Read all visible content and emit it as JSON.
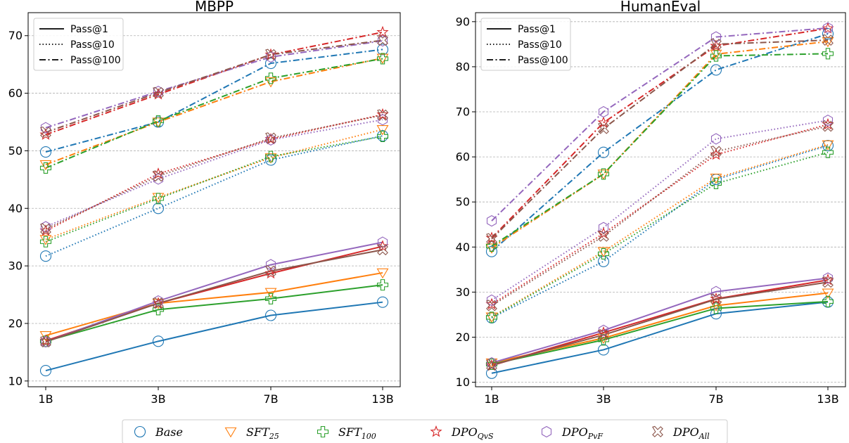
{
  "colors": {
    "Base": "#1f77b4",
    "SFT25": "#ff7f0e",
    "SFT100": "#2ca02c",
    "DPO_QvS": "#d62728",
    "DPO_PvF": "#9467bd",
    "DPO_All": "#8c564b"
  },
  "legend": {
    "line_styles": [
      {
        "label": "Pass@1",
        "style": "solid"
      },
      {
        "label": "Pass@10",
        "style": "dotted"
      },
      {
        "label": "Pass@100",
        "style": "dashdot"
      }
    ],
    "methods": [
      {
        "key": "Base",
        "label": "Base",
        "sub": "",
        "marker": "circle"
      },
      {
        "key": "SFT25",
        "label": "SFT",
        "sub": "25",
        "marker": "triangle_down"
      },
      {
        "key": "SFT100",
        "label": "SFT",
        "sub": "100",
        "marker": "plus"
      },
      {
        "key": "DPO_QvS",
        "label": "DPO",
        "sub": "QvS",
        "marker": "star"
      },
      {
        "key": "DPO_PvF",
        "label": "DPO",
        "sub": "PvF",
        "marker": "hexagon"
      },
      {
        "key": "DPO_All",
        "label": "DPO",
        "sub": "All",
        "marker": "x"
      }
    ]
  },
  "chart_data": [
    {
      "type": "line",
      "title": "MBPP",
      "categories": [
        "1B",
        "3B",
        "7B",
        "13B"
      ],
      "ylim": [
        9,
        74
      ],
      "yticks": [
        10,
        20,
        30,
        40,
        50,
        60,
        70
      ],
      "grid": "y-dashed",
      "legend_position": "top-left",
      "series": [
        {
          "method": "Base",
          "metric": "Pass@1",
          "values": [
            11.8,
            16.9,
            21.4,
            23.7
          ]
        },
        {
          "method": "SFT25",
          "metric": "Pass@1",
          "values": [
            17.9,
            23.5,
            25.4,
            28.8
          ]
        },
        {
          "method": "SFT100",
          "metric": "Pass@1",
          "values": [
            16.9,
            22.4,
            24.3,
            26.7
          ]
        },
        {
          "method": "DPO_QvS",
          "metric": "Pass@1",
          "values": [
            17.0,
            23.5,
            28.7,
            33.4
          ]
        },
        {
          "method": "DPO_PvF",
          "metric": "Pass@1",
          "values": [
            16.8,
            23.9,
            30.2,
            34.1
          ]
        },
        {
          "method": "DPO_All",
          "metric": "Pass@1",
          "values": [
            16.8,
            23.5,
            29.1,
            32.8
          ]
        },
        {
          "method": "Base",
          "metric": "Pass@10",
          "values": [
            31.7,
            40.0,
            48.4,
            52.6
          ]
        },
        {
          "method": "SFT25",
          "metric": "Pass@10",
          "values": [
            34.6,
            41.9,
            48.8,
            53.7
          ]
        },
        {
          "method": "SFT100",
          "metric": "Pass@10",
          "values": [
            34.2,
            41.7,
            49.0,
            52.5
          ]
        },
        {
          "method": "DPO_QvS",
          "metric": "Pass@10",
          "values": [
            36.1,
            46.0,
            52.0,
            56.3
          ]
        },
        {
          "method": "DPO_PvF",
          "metric": "Pass@10",
          "values": [
            36.8,
            45.1,
            51.9,
            55.4
          ]
        },
        {
          "method": "DPO_All",
          "metric": "Pass@10",
          "values": [
            36.4,
            45.6,
            52.2,
            56.2
          ]
        },
        {
          "method": "Base",
          "metric": "Pass@100",
          "values": [
            49.8,
            55.0,
            65.2,
            67.6
          ]
        },
        {
          "method": "SFT25",
          "metric": "Pass@100",
          "values": [
            47.6,
            55.0,
            62.0,
            66.1
          ]
        },
        {
          "method": "SFT100",
          "metric": "Pass@100",
          "values": [
            47.0,
            55.2,
            62.6,
            66.0
          ]
        },
        {
          "method": "DPO_QvS",
          "metric": "Pass@100",
          "values": [
            52.8,
            59.8,
            66.7,
            70.6
          ]
        },
        {
          "method": "DPO_PvF",
          "metric": "Pass@100",
          "values": [
            54.0,
            60.3,
            66.3,
            69.1
          ]
        },
        {
          "method": "DPO_All",
          "metric": "Pass@100",
          "values": [
            53.2,
            60.1,
            66.7,
            69.2
          ]
        }
      ]
    },
    {
      "type": "line",
      "title": "HumanEval",
      "categories": [
        "1B",
        "3B",
        "7B",
        "13B"
      ],
      "ylim": [
        9,
        92
      ],
      "yticks": [
        10,
        20,
        30,
        40,
        50,
        60,
        70,
        80,
        90
      ],
      "grid": "y-dashed",
      "legend_position": "top-left",
      "series": [
        {
          "method": "Base",
          "metric": "Pass@1",
          "values": [
            12.0,
            17.2,
            25.2,
            27.8
          ]
        },
        {
          "method": "SFT25",
          "metric": "Pass@1",
          "values": [
            14.3,
            19.8,
            27.0,
            29.8
          ]
        },
        {
          "method": "SFT100",
          "metric": "Pass@1",
          "values": [
            14.0,
            19.4,
            26.4,
            27.9
          ]
        },
        {
          "method": "DPO_QvS",
          "metric": "Pass@1",
          "values": [
            13.7,
            21.0,
            28.5,
            32.7
          ]
        },
        {
          "method": "DPO_PvF",
          "metric": "Pass@1",
          "values": [
            14.3,
            21.5,
            30.1,
            33.1
          ]
        },
        {
          "method": "DPO_All",
          "metric": "Pass@1",
          "values": [
            13.8,
            20.5,
            28.4,
            32.2
          ]
        },
        {
          "method": "Base",
          "metric": "Pass@10",
          "values": [
            24.3,
            36.8,
            55.0,
            62.5
          ]
        },
        {
          "method": "SFT25",
          "metric": "Pass@10",
          "values": [
            24.5,
            39.0,
            55.3,
            62.7
          ]
        },
        {
          "method": "SFT100",
          "metric": "Pass@10",
          "values": [
            24.4,
            38.5,
            54.1,
            61.0
          ]
        },
        {
          "method": "DPO_QvS",
          "metric": "Pass@10",
          "values": [
            27.3,
            43.0,
            60.5,
            67.2
          ]
        },
        {
          "method": "DPO_PvF",
          "metric": "Pass@10",
          "values": [
            28.2,
            44.3,
            64.0,
            68.1
          ]
        },
        {
          "method": "DPO_All",
          "metric": "Pass@10",
          "values": [
            27.0,
            42.4,
            61.2,
            66.8
          ]
        },
        {
          "method": "Base",
          "metric": "Pass@100",
          "values": [
            39.0,
            61.0,
            79.3,
            87.3
          ]
        },
        {
          "method": "SFT25",
          "metric": "Pass@100",
          "values": [
            39.8,
            56.2,
            82.8,
            85.6
          ]
        },
        {
          "method": "SFT100",
          "metric": "Pass@100",
          "values": [
            40.2,
            56.2,
            82.4,
            82.9
          ]
        },
        {
          "method": "DPO_QvS",
          "metric": "Pass@100",
          "values": [
            42.0,
            67.6,
            84.6,
            88.5
          ]
        },
        {
          "method": "DPO_PvF",
          "metric": "Pass@100",
          "values": [
            45.8,
            70.0,
            86.6,
            88.6
          ]
        },
        {
          "method": "DPO_All",
          "metric": "Pass@100",
          "values": [
            41.8,
            66.3,
            85.0,
            85.9
          ]
        }
      ]
    }
  ]
}
